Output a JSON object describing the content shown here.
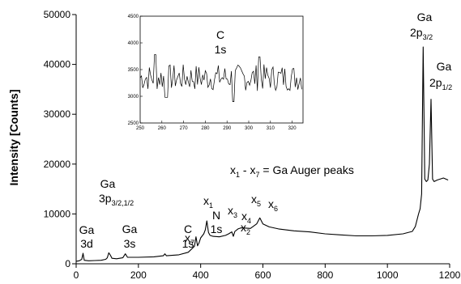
{
  "chart_data": {
    "type": "line",
    "ylabel": "Intensity [Counts]",
    "xlabel": "",
    "xlim": [
      0,
      1200
    ],
    "ylim": [
      0,
      50000
    ],
    "x_ticks": [
      0,
      200,
      400,
      600,
      800,
      1000,
      1200
    ],
    "y_ticks": [
      0,
      10000,
      20000,
      30000,
      40000,
      50000
    ],
    "series": [
      {
        "name": "",
        "x": [
          0,
          10,
          18,
          22,
          26,
          40,
          60,
          80,
          95,
          100,
          105,
          110,
          115,
          130,
          150,
          158,
          165,
          200,
          250,
          280,
          285,
          290,
          330,
          360,
          380,
          385,
          390,
          395,
          400,
          410,
          415,
          420,
          425,
          430,
          440,
          460,
          480,
          490,
          500,
          505,
          510,
          520,
          530,
          560,
          580,
          590,
          600,
          620,
          650,
          700,
          750,
          800,
          850,
          900,
          950,
          1000,
          1050,
          1080,
          1090,
          1100,
          1105,
          1110,
          1115,
          1120,
          1125,
          1130,
          1135,
          1140,
          1145,
          1150,
          1160,
          1180,
          1195
        ],
        "y": [
          500,
          600,
          900,
          2100,
          700,
          600,
          650,
          700,
          900,
          1200,
          2200,
          1700,
          1100,
          1000,
          1200,
          2000,
          1300,
          1300,
          1400,
          1600,
          2000,
          1600,
          1800,
          2300,
          3500,
          5400,
          3600,
          4200,
          5200,
          6000,
          6800,
          8600,
          6300,
          5700,
          5500,
          5400,
          5700,
          6000,
          6400,
          5500,
          6500,
          7000,
          7200,
          7100,
          8000,
          9200,
          8000,
          7400,
          7000,
          6600,
          6400,
          6000,
          5800,
          5600,
          5600,
          5700,
          6000,
          6500,
          7500,
          10000,
          11000,
          14000,
          43500,
          17000,
          16500,
          16800,
          20000,
          33000,
          17000,
          16500,
          16800,
          17200,
          16800
        ]
      }
    ],
    "inset": {
      "title_line1": "C",
      "title_line2": "1s",
      "xlim": [
        250,
        325
      ],
      "ylim": [
        2500,
        4500
      ],
      "x_ticks": [
        250,
        260,
        270,
        280,
        290,
        300,
        310,
        320
      ],
      "y_ticks": [
        2500,
        3000,
        3500,
        4000,
        4500
      ]
    },
    "annotations": {
      "ga3d": [
        "Ga",
        "3d"
      ],
      "ga3p": [
        "Ga",
        "3p",
        "3/2,1/2"
      ],
      "ga3s": [
        "Ga",
        "3s"
      ],
      "c1s": [
        "C",
        "1s"
      ],
      "n1s": [
        "N",
        "1s"
      ],
      "ga2p32": [
        "Ga",
        "2p",
        "3/2"
      ],
      "ga2p12": [
        "Ga",
        "2p",
        "1/2"
      ],
      "auger_note": [
        "x",
        "1",
        " - x",
        "7",
        " = Ga Auger peaks"
      ],
      "x_labels": [
        [
          "x",
          "1"
        ],
        [
          "x",
          "2"
        ],
        [
          "x",
          "3"
        ],
        [
          "x",
          "4"
        ],
        [
          "x",
          "5"
        ],
        [
          "x",
          "6"
        ],
        [
          "x",
          "7"
        ]
      ]
    }
  }
}
